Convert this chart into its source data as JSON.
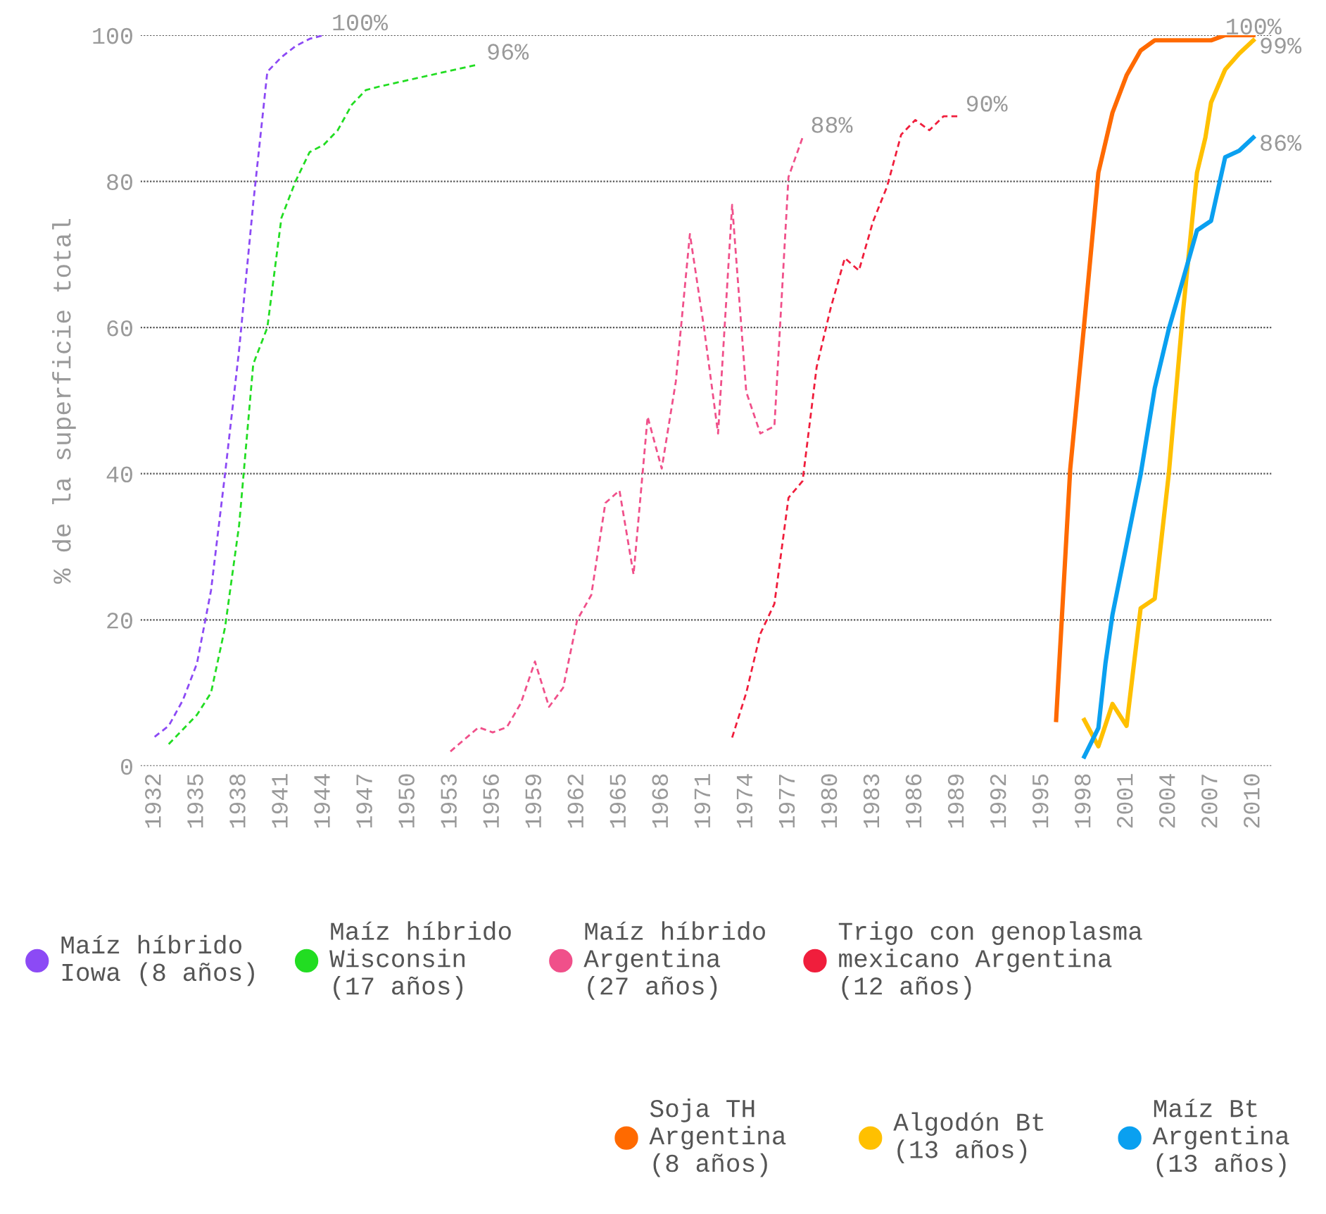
{
  "chart_data": {
    "type": "line",
    "ylabel": "% de la superficie total",
    "xlim": [
      1931,
      2011.3
    ],
    "xticks": [
      1932,
      1935,
      1938,
      1941,
      1944,
      1947,
      1950,
      1953,
      1956,
      1959,
      1962,
      1965,
      1968,
      1971,
      1974,
      1977,
      1980,
      1983,
      1986,
      1989,
      1992,
      1995,
      1998,
      2001,
      2004,
      2007,
      2010
    ],
    "ylim": [
      0,
      100
    ],
    "yticks": [
      0,
      20,
      40,
      60,
      80,
      100
    ],
    "grid": "y",
    "legend": "bottom",
    "marker": "none",
    "series": [
      {
        "name": "Maíz híbrido\nIowa (8 años)",
        "color": "#8c4af5",
        "line_style": "dashed",
        "x": [
          1932,
          1933,
          1934,
          1935,
          1936,
          1937,
          1938,
          1939,
          1940,
          1941,
          1942,
          1943,
          1944
        ],
        "values": [
          4,
          5.5,
          9,
          14,
          24,
          40,
          57,
          77,
          95,
          97,
          98.5,
          99.5,
          100
        ]
      },
      {
        "name": "Maíz híbrido\nWisconsin\n(17 años)",
        "color": "#22dd22",
        "line_style": "dashed",
        "x": [
          1933,
          1934,
          1935,
          1936,
          1937,
          1938,
          1939,
          1940,
          1941,
          1942,
          1943,
          1944,
          1945,
          1946,
          1947,
          1948,
          1955
        ],
        "values": [
          3,
          5,
          7,
          10,
          19,
          33,
          55,
          60,
          75,
          80,
          84,
          85,
          87,
          90.5,
          92.5,
          93,
          96
        ]
      },
      {
        "name": "Maíz híbrido\nArgentina\n(27 años)",
        "color": "#f0508a",
        "line_style": "dashed",
        "x": [
          1953,
          1955,
          1956,
          1957,
          1958,
          1959,
          1960,
          1961,
          1962,
          1963,
          1964,
          1965,
          1966,
          1967,
          1968,
          1969,
          1970,
          1971,
          1972,
          1973,
          1974,
          1975,
          1976,
          1977,
          1978
        ],
        "values": [
          2,
          5.3,
          4.6,
          5.3,
          8.6,
          14.3,
          8.1,
          10.7,
          20,
          23.4,
          36,
          37.7,
          26.2,
          47.8,
          40.7,
          52.6,
          72.8,
          60,
          45.5,
          76.8,
          51.2,
          45.5,
          46.5,
          80.6,
          86
        ]
      },
      {
        "name": "Trigo con genoplasma\nmexicano Argentina\n(12 años)",
        "color": "#f01e3c",
        "line_style": "dashed",
        "x": [
          1973,
          1974,
          1975,
          1976,
          1977,
          1978,
          1979,
          1980,
          1981,
          1982,
          1983,
          1984,
          1985,
          1986,
          1987,
          1988,
          1989
        ],
        "values": [
          3.9,
          10,
          18.1,
          22.2,
          36.7,
          39,
          54.6,
          62.7,
          69.5,
          67.8,
          74.5,
          79.3,
          86.4,
          88.4,
          87,
          88.9,
          88.9
        ]
      },
      {
        "name": "Soja TH\nArgentina\n(8 años)",
        "color": "#ff6a00",
        "line_style": "solid",
        "x": [
          1996,
          1997,
          1998,
          1999,
          2000,
          2001,
          2002,
          2003,
          2004,
          2005,
          2006,
          2007,
          2008,
          2009,
          2010
        ],
        "values": [
          6.3,
          40.6,
          60.6,
          81.2,
          89.4,
          94.5,
          97.9,
          99.3,
          99.3,
          99.3,
          99.3,
          99.3,
          100,
          100,
          100
        ]
      },
      {
        "name": "Algodón Bt\n(13 años)",
        "color": "#ffc000",
        "line_style": "solid",
        "x": [
          1998,
          1999,
          2000,
          2001,
          2002,
          2003,
          2004,
          2005,
          2006,
          2006.6,
          2007,
          2008,
          2009,
          2010
        ],
        "values": [
          6.3,
          2.7,
          8.5,
          5.5,
          21.6,
          22.9,
          40,
          62,
          81.2,
          86,
          90.8,
          95.3,
          97.5,
          99.3
        ]
      },
      {
        "name": "Maíz Bt\nArgentina\n(13 años)",
        "color": "#0aa0f0",
        "line_style": "solid",
        "x": [
          1998,
          1999,
          1999.5,
          2000,
          2001,
          2002,
          2003,
          2004,
          2005,
          2006,
          2007,
          2008,
          2009,
          2010
        ],
        "values": [
          1.3,
          5.2,
          14,
          20.7,
          30.3,
          39.9,
          51.7,
          59.8,
          66.5,
          73.3,
          74.6,
          83.3,
          84.2,
          86
        ]
      }
    ],
    "annotations": [
      {
        "text": "100%",
        "x": 1944,
        "y": 100
      },
      {
        "text": "96%",
        "x": 1955,
        "y": 96
      },
      {
        "text": "88%",
        "x": 1978,
        "y": 86
      },
      {
        "text": "90%",
        "x": 1989,
        "y": 88.9
      },
      {
        "text": "100%",
        "x": 2010,
        "y": 100
      },
      {
        "text": "99%",
        "x": 2010,
        "y": 99.3
      },
      {
        "text": "86%",
        "x": 2010,
        "y": 86
      }
    ]
  }
}
